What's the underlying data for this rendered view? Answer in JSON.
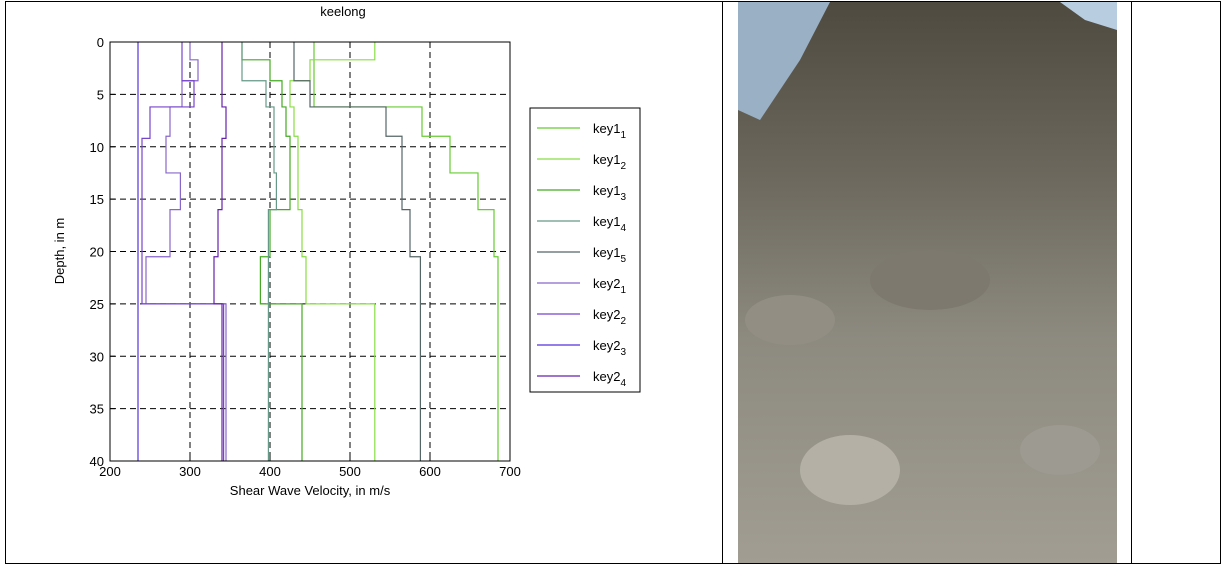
{
  "chart_data": {
    "type": "step-profile",
    "title": "keelong",
    "xlabel": "Shear Wave Velocity, in m/s",
    "ylabel": "Depth, in m",
    "xlim": [
      200,
      700
    ],
    "ylim": [
      0,
      40
    ],
    "y_inverted": true,
    "xticks": [
      200,
      300,
      400,
      500,
      600,
      700
    ],
    "yticks": [
      0,
      5,
      10,
      15,
      20,
      25,
      30,
      35,
      40
    ],
    "grid": true,
    "legend": "outside-right",
    "series": [
      {
        "name": "key1",
        "sub": "1",
        "color": "#66cc33",
        "x": [
          455,
          455,
          590,
          590,
          625,
          625,
          660,
          660,
          680,
          680,
          685,
          685
        ],
        "y": [
          0,
          6.2,
          6.2,
          9,
          9,
          12.5,
          12.5,
          16,
          16,
          20.5,
          20.5,
          40
        ]
      },
      {
        "name": "key1",
        "sub": "2",
        "color": "#88dd44",
        "x": [
          531,
          531,
          450,
          450,
          425,
          425,
          430,
          430,
          435,
          435,
          440,
          440,
          445,
          445,
          531,
          531
        ],
        "y": [
          0,
          1.7,
          1.7,
          3.7,
          3.7,
          6.2,
          6.2,
          9,
          9,
          16,
          16,
          20.5,
          20.5,
          25,
          25,
          40
        ]
      },
      {
        "name": "key1",
        "sub": "3",
        "color": "#44aa22",
        "x": [
          365,
          365,
          400,
          400,
          415,
          415,
          420,
          420,
          425,
          425,
          400,
          400,
          388,
          388,
          440,
          440
        ],
        "y": [
          0,
          1.7,
          1.7,
          3.7,
          3.7,
          6.2,
          6.2,
          9,
          9,
          16,
          16,
          20.5,
          20.5,
          25,
          25,
          40
        ]
      },
      {
        "name": "key1",
        "sub": "4",
        "color": "#669988",
        "x": [
          365,
          365,
          395,
          395,
          405,
          405,
          408,
          408,
          398,
          398
        ],
        "y": [
          0,
          3.7,
          3.7,
          6.2,
          6.2,
          12.5,
          12.5,
          16,
          16,
          40
        ]
      },
      {
        "name": "key1",
        "sub": "5",
        "color": "#556666",
        "x": [
          430,
          430,
          450,
          450,
          545,
          545,
          565,
          565,
          575,
          575,
          588,
          588
        ],
        "y": [
          0,
          3.7,
          3.7,
          6.2,
          6.2,
          9,
          9,
          16,
          16,
          20.5,
          20.5,
          40
        ]
      },
      {
        "name": "key2",
        "sub": "1",
        "color": "#8866cc",
        "x": [
          300,
          300,
          310,
          310,
          290,
          290,
          275,
          275,
          270,
          270,
          288,
          288,
          275,
          275,
          245,
          245,
          345,
          345
        ],
        "y": [
          0,
          1.7,
          1.7,
          3.7,
          3.7,
          6.2,
          6.2,
          9,
          9,
          12.5,
          12.5,
          16,
          16,
          20.5,
          20.5,
          25,
          25,
          40
        ]
      },
      {
        "name": "key2",
        "sub": "2",
        "color": "#7744cc",
        "x": [
          290,
          290,
          305,
          305,
          250,
          250,
          240,
          240,
          342,
          342
        ],
        "y": [
          0,
          3.7,
          3.7,
          6.2,
          6.2,
          9.2,
          9.2,
          25,
          25,
          40
        ]
      },
      {
        "name": "key2",
        "sub": "3",
        "color": "#5533dd",
        "x": [
          235,
          235
        ],
        "y": [
          0,
          40
        ]
      },
      {
        "name": "key2",
        "sub": "4",
        "color": "#6622aa",
        "x": [
          340,
          340,
          345,
          345,
          340,
          340,
          335,
          335,
          330,
          330,
          340,
          340
        ],
        "y": [
          0,
          6.2,
          6.2,
          9.2,
          9.2,
          16,
          16,
          20.5,
          20.5,
          25,
          25,
          40
        ]
      }
    ]
  }
}
